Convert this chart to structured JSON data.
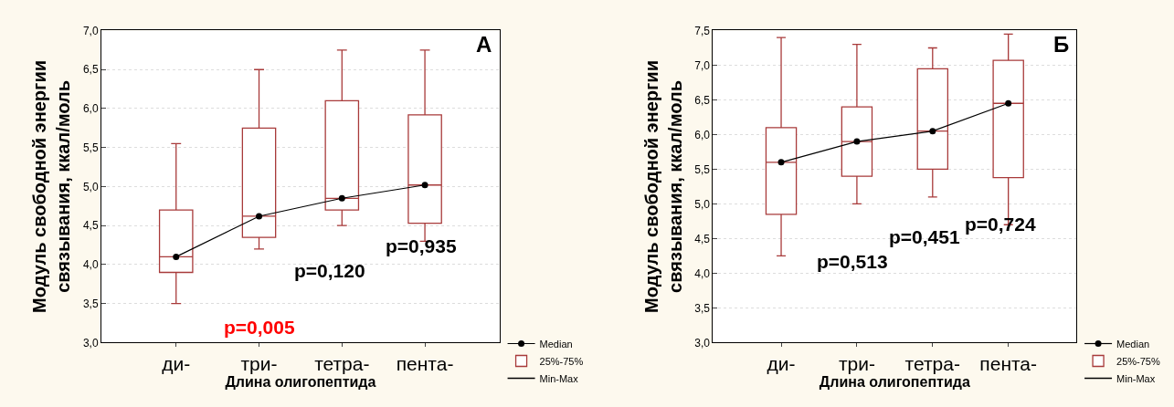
{
  "chart_data": [
    {
      "type": "box",
      "title": "А",
      "xlabel": "Длина олигопептида",
      "ylabel": "Модуль свободной энергии\nсвязывания, ккал/моль",
      "categories": [
        "ди-",
        "три-",
        "тетра-",
        "пента-"
      ],
      "series": [
        {
          "type": "box",
          "name": "25%-75%",
          "color": "#a83a3a",
          "boxes": [
            {
              "low": 3.5,
              "q1": 3.9,
              "median": 4.1,
              "q3": 4.7,
              "high": 5.55
            },
            {
              "low": 4.2,
              "q1": 4.35,
              "median": 4.62,
              "q3": 5.75,
              "high": 6.5
            },
            {
              "low": 4.5,
              "q1": 4.7,
              "median": 4.85,
              "q3": 6.1,
              "high": 6.75
            },
            {
              "low": 4.3,
              "q1": 4.53,
              "median": 5.02,
              "q3": 5.92,
              "high": 6.75
            }
          ]
        },
        {
          "type": "line",
          "name": "Median",
          "color": "#000000",
          "marker": "circle",
          "values": [
            4.1,
            4.62,
            4.85,
            5.02
          ]
        }
      ],
      "annotations": [
        "p=0,005",
        "p=0,120",
        "p=0,935",
        "Min-Max"
      ],
      "ylim": [
        3.0,
        7.0
      ],
      "yticks": [
        {
          "value": 3.0,
          "label": "3,0"
        },
        {
          "value": 3.5,
          "label": "3,5"
        },
        {
          "value": 4.0,
          "label": "4,0"
        },
        {
          "value": 4.5,
          "label": "4,5"
        },
        {
          "value": 5.0,
          "label": "5,0"
        },
        {
          "value": 5.5,
          "label": "5,5"
        },
        {
          "value": 6.0,
          "label": "6,0"
        },
        {
          "value": 6.5,
          "label": "6,5"
        },
        {
          "value": 7.0,
          "label": "7,0"
        }
      ],
      "grid": "y",
      "legend": "bottom right"
    },
    {
      "type": "box",
      "title": "Б",
      "xlabel": "Длина олигопептида",
      "ylabel": "Модуль свободной энергии\nсвязывания, ккал/моль",
      "categories": [
        "ди-",
        "три-",
        "тетра-",
        "пента-"
      ],
      "series": [
        {
          "type": "box",
          "name": "25%-75%",
          "color": "#a83a3a",
          "boxes": [
            {
              "low": 4.25,
              "q1": 4.85,
              "median": 5.6,
              "q3": 6.1,
              "high": 7.4
            },
            {
              "low": 5.0,
              "q1": 5.4,
              "median": 5.9,
              "q3": 6.4,
              "high": 7.3
            },
            {
              "low": 5.1,
              "q1": 5.5,
              "median": 6.05,
              "q3": 6.95,
              "high": 7.25
            },
            {
              "low": 4.7,
              "q1": 5.38,
              "median": 6.45,
              "q3": 7.07,
              "high": 7.45
            }
          ]
        },
        {
          "type": "line",
          "name": "Median",
          "color": "#000000",
          "marker": "circle",
          "values": [
            5.6,
            5.9,
            6.05,
            6.45
          ]
        }
      ],
      "annotations": [
        "p=0,513",
        "p=0,451",
        "p=0,724",
        "Min-Max"
      ],
      "ylim": [
        3.0,
        7.5
      ],
      "yticks": [
        {
          "value": 3.0,
          "label": "3,0"
        },
        {
          "value": 3.5,
          "label": "3,5"
        },
        {
          "value": 4.0,
          "label": "4,0"
        },
        {
          "value": 4.5,
          "label": "4,5"
        },
        {
          "value": 5.0,
          "label": "5,0"
        },
        {
          "value": 5.5,
          "label": "5,5"
        },
        {
          "value": 6.0,
          "label": "6,0"
        },
        {
          "value": 6.5,
          "label": "6,5"
        },
        {
          "value": 7.0,
          "label": "7,0"
        },
        {
          "value": 7.5,
          "label": "7,5"
        }
      ],
      "grid": "y",
      "legend": "bottom right"
    }
  ]
}
